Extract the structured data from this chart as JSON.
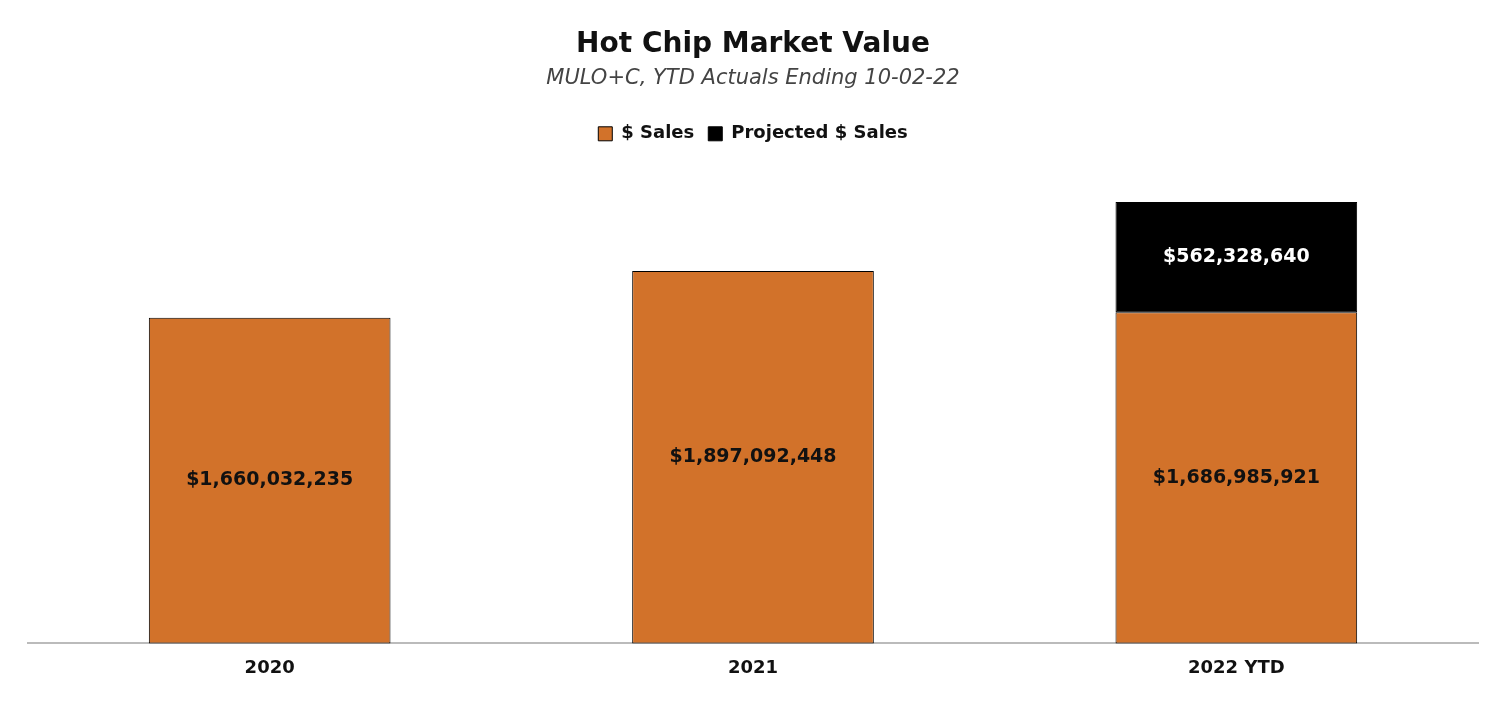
{
  "chart_data": {
    "type": "bar",
    "title": "Hot Chip Market Value",
    "subtitle": "MULO+C, YTD Actuals Ending 10-02-22",
    "categories": [
      "2020",
      "2021",
      "2022 YTD"
    ],
    "stacked": true,
    "legend": "top",
    "grid": false,
    "series": [
      {
        "name": "$ Sales",
        "color": "#d2722a",
        "values": [
          1660032235,
          1897092448,
          1686985921
        ],
        "value_labels": [
          "$1,660,032,235",
          "$1,897,092,448",
          "$1,686,985,921"
        ]
      },
      {
        "name": "Projected $ Sales",
        "color": "#000000",
        "values": [
          null,
          null,
          562328640
        ],
        "value_labels": [
          null,
          null,
          "$562,328,640"
        ]
      }
    ]
  }
}
